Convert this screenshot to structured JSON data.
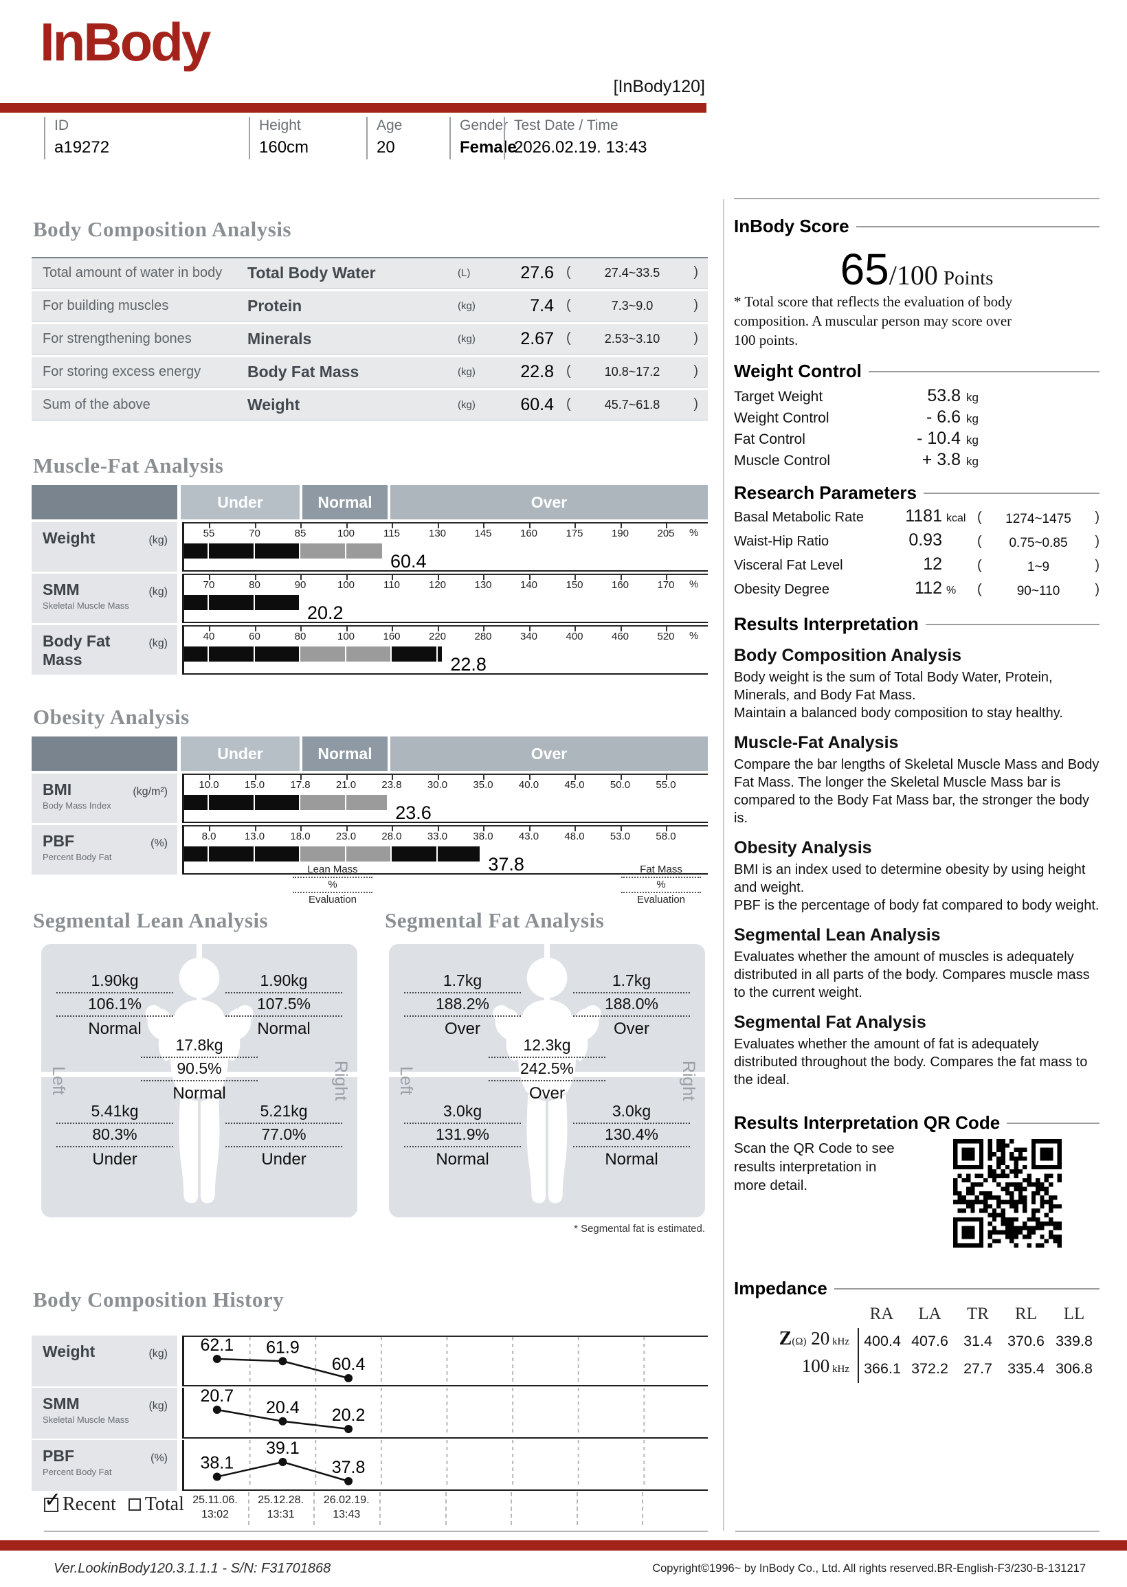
{
  "page": {
    "brand": "InBody",
    "model": "[InBody120]",
    "accent_color": "#a3231b",
    "footer_left": "Ver.LookinBody120.3.1.1.1 - S/N: F31701868",
    "footer_right": "Copyright©1996~ by InBody Co., Ltd. All rights reserved.BR-English-F3/230-B-131217"
  },
  "misc": {
    "paren_open": "(",
    "paren_close": ")"
  },
  "info": {
    "id_label": "ID",
    "id_value": "a19272",
    "height_label": "Height",
    "height_value": "160cm",
    "age_label": "Age",
    "age_value": "20",
    "gender_label": "Gender",
    "gender_value": "Female",
    "date_label": "Test Date / Time",
    "date_value": "2026.02.19. 13:43"
  },
  "bca": {
    "title": "Body Composition Analysis",
    "rows": [
      {
        "desc": "Total amount of water in body",
        "name": "Total Body Water",
        "unit": "(L)",
        "value": "27.6",
        "range": "27.4~33.5"
      },
      {
        "desc": "For building muscles",
        "name": "Protein",
        "unit": "(kg)",
        "value": "7.4",
        "range": "7.3~9.0"
      },
      {
        "desc": "For strengthening bones",
        "name": "Minerals",
        "unit": "(kg)",
        "value": "2.67",
        "range": "2.53~3.10"
      },
      {
        "desc": "For storing excess energy",
        "name": "Body Fat Mass",
        "unit": "(kg)",
        "value": "22.8",
        "range": "10.8~17.2"
      },
      {
        "desc": "Sum of the above",
        "name": "Weight",
        "unit": "(kg)",
        "value": "60.4",
        "range": "45.7~61.8"
      }
    ]
  },
  "mfa": {
    "title": "Muscle-Fat Analysis",
    "bands": [
      "Under",
      "Normal",
      "Over"
    ],
    "rows": [
      {
        "label": "Weight",
        "sub": "",
        "unit": "(kg)",
        "pct": "%",
        "ticks": [
          "55",
          "70",
          "85",
          "100",
          "115",
          "130",
          "145",
          "160",
          "175",
          "190",
          "205"
        ],
        "value": "60.4",
        "bar_value": 112.3
      },
      {
        "label": "SMM",
        "sub": "Skeletal Muscle Mass",
        "unit": "(kg)",
        "pct": "%",
        "ticks": [
          "70",
          "80",
          "90",
          "100",
          "110",
          "120",
          "130",
          "140",
          "150",
          "160",
          "170"
        ],
        "value": "20.2",
        "bar_value": 90
      },
      {
        "label": "Body Fat Mass",
        "sub": "",
        "unit": "(kg)",
        "pct": "%",
        "ticks": [
          "40",
          "60",
          "80",
          "100",
          "160",
          "220",
          "280",
          "340",
          "400",
          "460",
          "520"
        ],
        "value": "22.8",
        "bar_value": 228
      }
    ]
  },
  "obesity": {
    "title": "Obesity Analysis",
    "bands": [
      "Under",
      "Normal",
      "Over"
    ],
    "rows": [
      {
        "label": "BMI",
        "sub": "Body Mass Index",
        "unit": "(kg/m²)",
        "pct": "",
        "ticks": [
          "10.0",
          "15.0",
          "17.8",
          "21.0",
          "23.8",
          "30.0",
          "35.0",
          "40.0",
          "45.0",
          "50.0",
          "55.0"
        ],
        "value": "23.6",
        "bar_value": 23.6
      },
      {
        "label": "PBF",
        "sub": "Percent Body Fat",
        "unit": "(%)",
        "pct": "",
        "ticks": [
          "8.0",
          "13.0",
          "18.0",
          "23.0",
          "28.0",
          "33.0",
          "38.0",
          "43.0",
          "48.0",
          "53.0",
          "58.0"
        ],
        "value": "37.8",
        "bar_value": 37.8
      }
    ]
  },
  "segmental": {
    "lean": {
      "title": "Segmental Lean Analysis",
      "legend": [
        "Lean Mass",
        "%",
        "Evaluation"
      ],
      "cells": {
        "top_left": {
          "kg": "1.90kg",
          "pct": "106.1%",
          "eval": "Normal"
        },
        "top_right": {
          "kg": "1.90kg",
          "pct": "107.5%",
          "eval": "Normal"
        },
        "trunk": {
          "kg": "17.8kg",
          "pct": "90.5%",
          "eval": "Normal"
        },
        "bot_left": {
          "kg": "5.41kg",
          "pct": "80.3%",
          "eval": "Under"
        },
        "bot_right": {
          "kg": "5.21kg",
          "pct": "77.0%",
          "eval": "Under"
        }
      }
    },
    "fat": {
      "title": "Segmental Fat Analysis",
      "legend": [
        "Fat Mass",
        "%",
        "Evaluation"
      ],
      "cells": {
        "top_left": {
          "kg": "1.7kg",
          "pct": "188.2%",
          "eval": "Over"
        },
        "top_right": {
          "kg": "1.7kg",
          "pct": "188.0%",
          "eval": "Over"
        },
        "trunk": {
          "kg": "12.3kg",
          "pct": "242.5%",
          "eval": "Over"
        },
        "bot_left": {
          "kg": "3.0kg",
          "pct": "131.9%",
          "eval": "Normal"
        },
        "bot_right": {
          "kg": "3.0kg",
          "pct": "130.4%",
          "eval": "Normal"
        }
      }
    },
    "left_label": "Left",
    "right_label": "Right",
    "note": "* Segmental fat is estimated."
  },
  "history": {
    "title": "Body Composition History",
    "rows": [
      {
        "label": "Weight",
        "sub": "",
        "unit": "(kg)",
        "values": [
          62.1,
          61.9,
          60.4
        ],
        "labels": [
          "62.1",
          "61.9",
          "60.4"
        ]
      },
      {
        "label": "SMM",
        "sub": "Skeletal Muscle Mass",
        "unit": "(kg)",
        "values": [
          20.7,
          20.4,
          20.2
        ],
        "labels": [
          "20.7",
          "20.4",
          "20.2"
        ]
      },
      {
        "label": "PBF",
        "sub": "Percent Body Fat",
        "unit": "(%)",
        "values": [
          38.1,
          39.1,
          37.8
        ],
        "labels": [
          "38.1",
          "39.1",
          "37.8"
        ]
      }
    ],
    "dates": [
      [
        "25.11.06.",
        "13:02"
      ],
      [
        "25.12.28.",
        "13:31"
      ],
      [
        "26.02.19.",
        "13:43"
      ]
    ],
    "legend_recent": "Recent",
    "legend_total": "Total",
    "check_glyph": "✓"
  },
  "score": {
    "title": "InBody Score",
    "value": "65",
    "denom": "/100",
    "points": "Points",
    "note": "* Total score that reflects the evaluation of body\n   composition. A muscular person may score over\n   100 points."
  },
  "weight_control": {
    "title": "Weight Control",
    "rows": [
      {
        "label": "Target Weight",
        "value": "53.8",
        "unit": "kg"
      },
      {
        "label": "Weight Control",
        "value": "- 6.6",
        "unit": "kg"
      },
      {
        "label": "Fat Control",
        "value": "- 10.4",
        "unit": "kg"
      },
      {
        "label": "Muscle Control",
        "value": "+ 3.8",
        "unit": "kg"
      }
    ]
  },
  "research": {
    "title": "Research Parameters",
    "rows": [
      {
        "label": "Basal Metabolic Rate",
        "value": "1181",
        "unit": "kcal",
        "range": "1274~1475"
      },
      {
        "label": "Waist-Hip Ratio",
        "value": "0.93",
        "unit": "",
        "range": "0.75~0.85"
      },
      {
        "label": "Visceral Fat Level",
        "value": "12",
        "unit": "",
        "range": "1~9"
      },
      {
        "label": "Obesity Degree",
        "value": "112",
        "unit": "%",
        "range": "90~110"
      }
    ]
  },
  "interpretation": {
    "title": "Results Interpretation",
    "sections": [
      {
        "heading": "Body Composition Analysis",
        "body": "Body weight is the sum of Total Body Water, Protein, Minerals, and Body Fat Mass.\nMaintain a balanced body composition to stay healthy."
      },
      {
        "heading": "Muscle-Fat Analysis",
        "body": "Compare the bar lengths of Skeletal Muscle Mass and Body Fat Mass. The longer the Skeletal Muscle Mass bar is compared to the Body Fat Mass bar, the stronger the body is."
      },
      {
        "heading": "Obesity Analysis",
        "body": "BMI is an index used to determine obesity by using height and weight.\nPBF is the percentage of body fat compared to body weight."
      },
      {
        "heading": "Segmental Lean Analysis",
        "body": "Evaluates whether the amount of muscles is adequately distributed in all parts of the body. Compares muscle mass to the current weight."
      },
      {
        "heading": "Segmental Fat Analysis",
        "body": "Evaluates whether the amount of fat is adequately distributed throughout the body. Compares the fat mass to the ideal."
      }
    ]
  },
  "qr": {
    "title": "Results Interpretation QR Code",
    "text": "Scan the QR Code to see\nresults interpretation in\nmore detail."
  },
  "impedance": {
    "title": "Impedance",
    "symbol": "Z",
    "ohm": "(Ω)",
    "cols": [
      "RA",
      "LA",
      "TR",
      "RL",
      "LL"
    ],
    "rows": [
      {
        "freq": "20",
        "unit": "kHz",
        "values": [
          "400.4",
          "407.6",
          "31.4",
          "370.6",
          "339.8"
        ]
      },
      {
        "freq": "100",
        "unit": "kHz",
        "values": [
          "366.1",
          "372.2",
          "27.7",
          "335.4",
          "306.8"
        ]
      }
    ]
  }
}
